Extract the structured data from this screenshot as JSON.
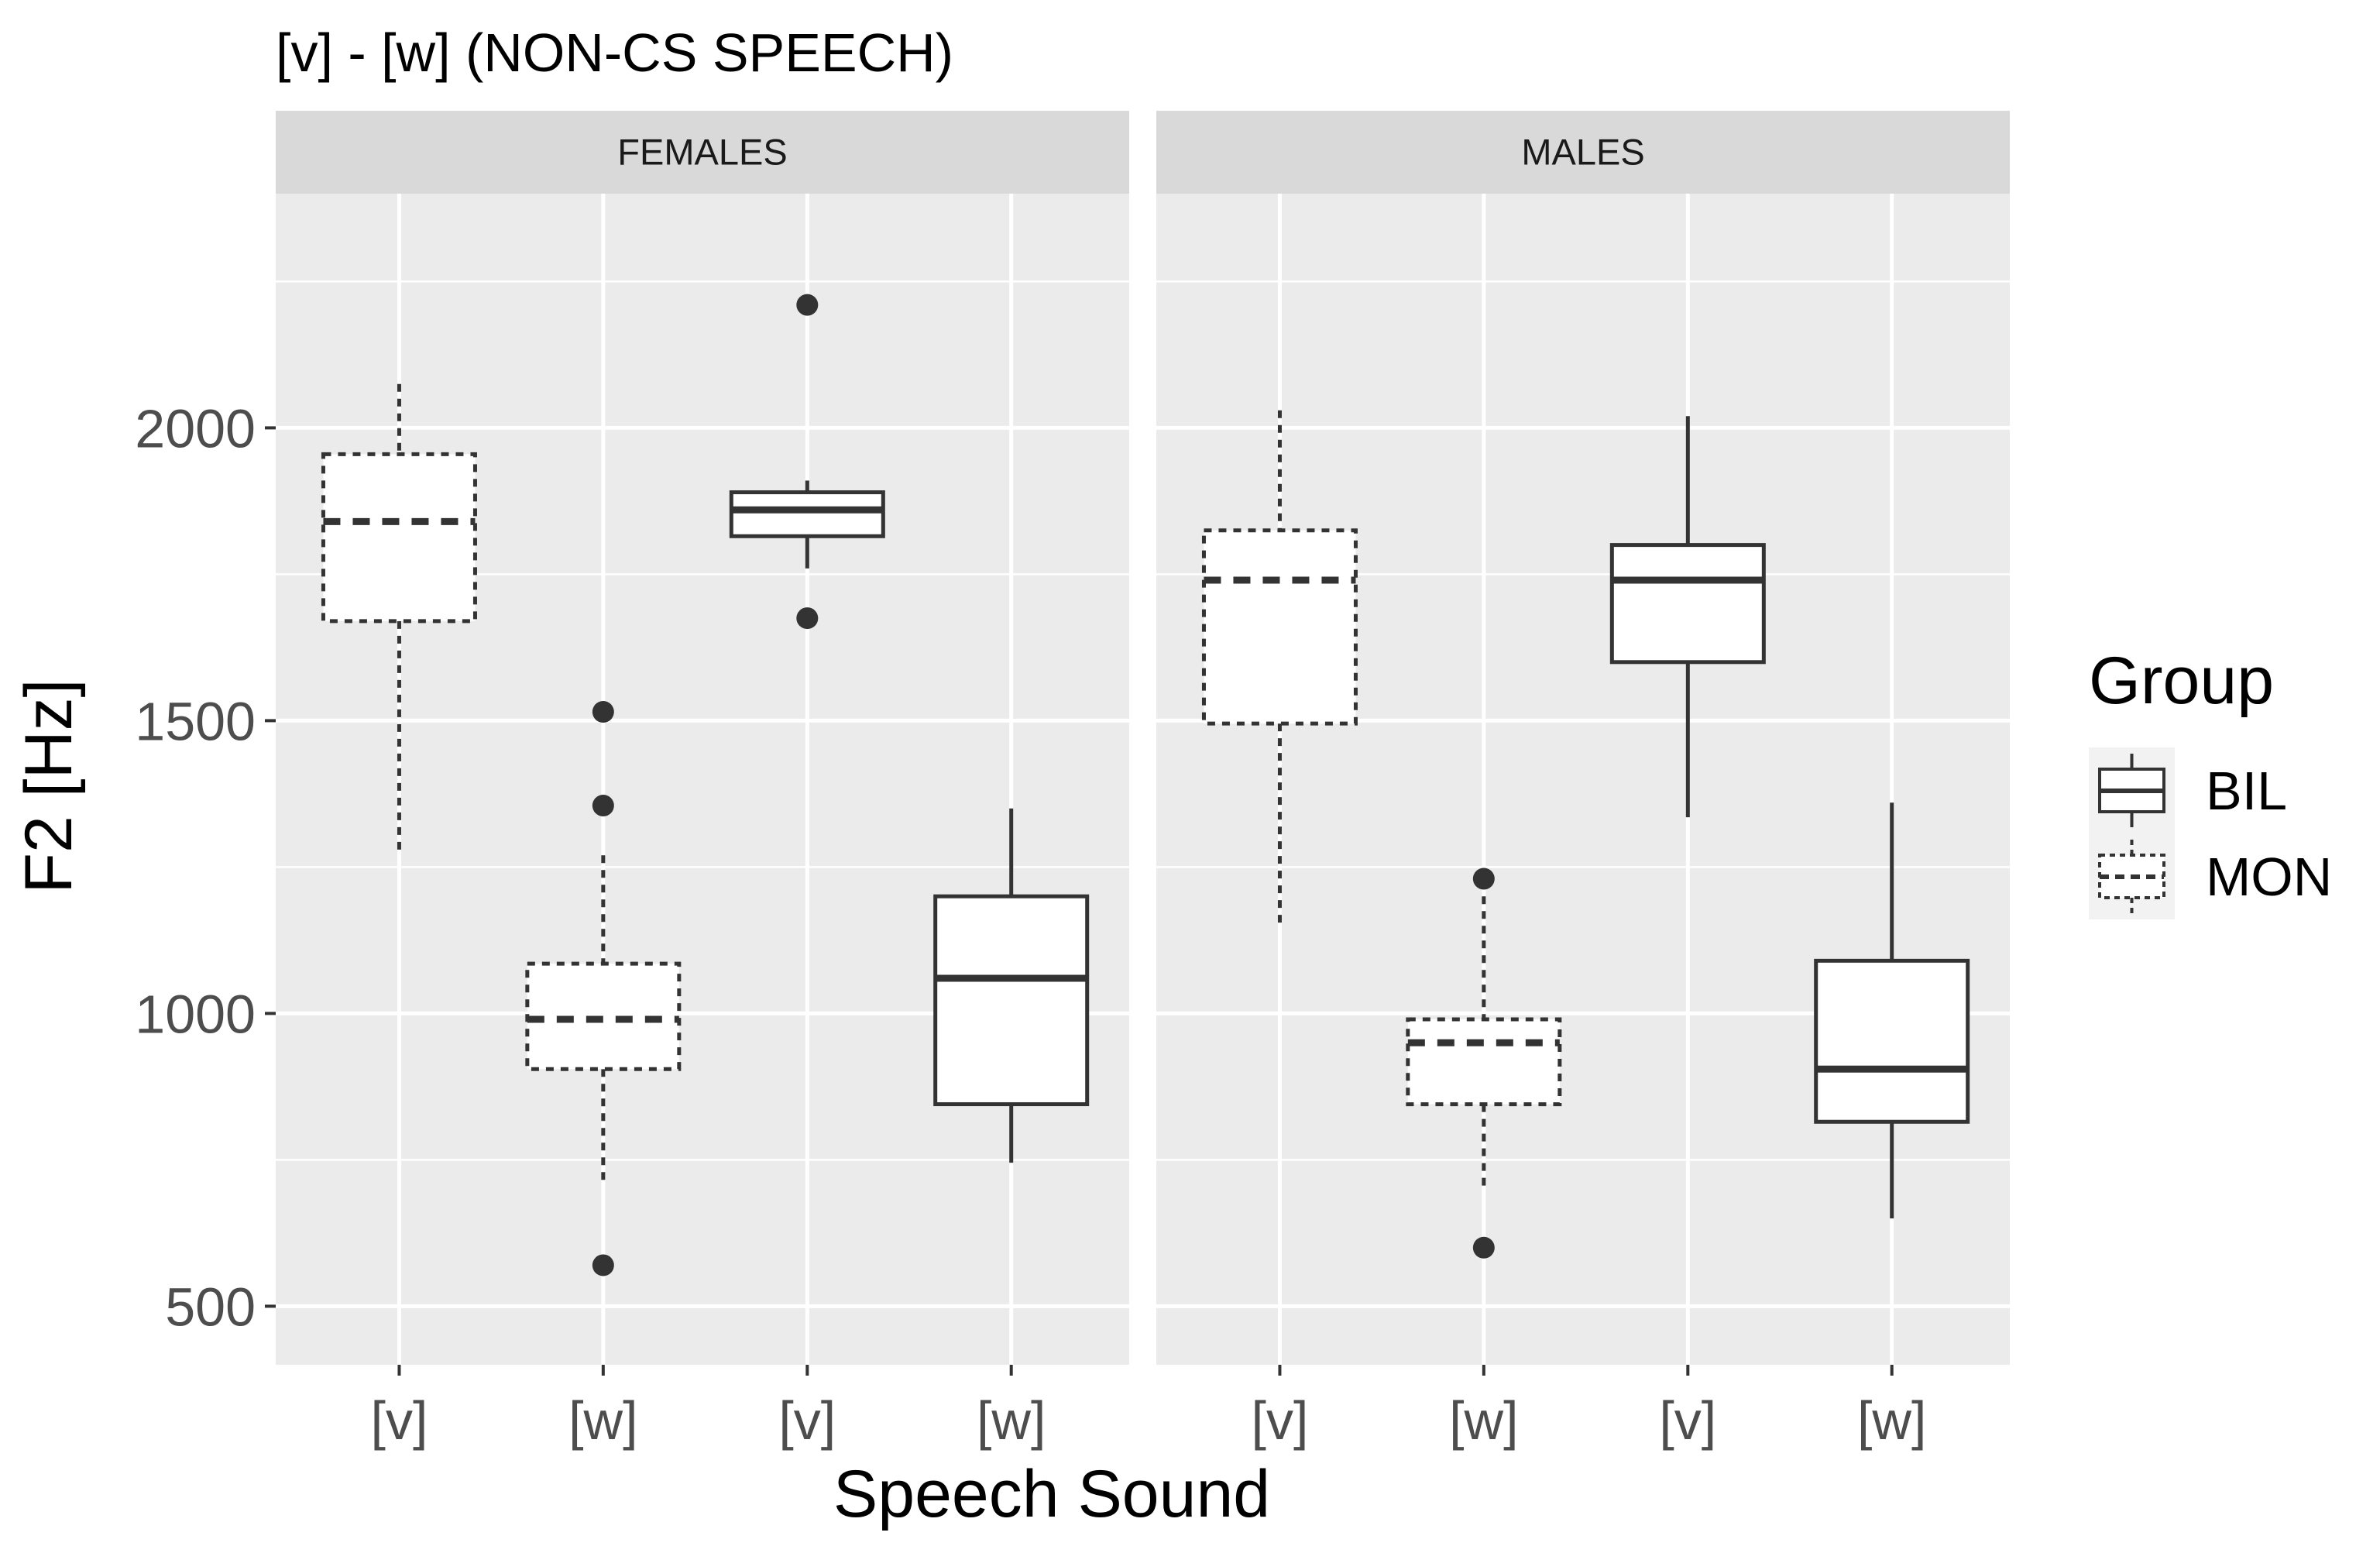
{
  "chart_data": {
    "type": "boxplot",
    "title": "[v] - [w] (NON-CS SPEECH)",
    "xlabel": "Speech Sound",
    "ylabel": "F2 [Hz]",
    "ylim": [
      400,
      2400
    ],
    "yticks": [
      500,
      1000,
      1500,
      2000
    ],
    "categories": [
      "[v]",
      "[w]",
      "[v]",
      "[w]"
    ],
    "legend": {
      "title": "Group",
      "position": "right",
      "entries": [
        {
          "name": "BIL",
          "linetype": "solid"
        },
        {
          "name": "MON",
          "linetype": "dashed"
        }
      ]
    },
    "panels": [
      {
        "label": "FEMALES",
        "boxes": [
          {
            "category": "[v]",
            "group": "MON",
            "whisker_low": 1270,
            "q1": 1670,
            "median": 1840,
            "q3": 1955,
            "whisker_high": 2075,
            "outliers": []
          },
          {
            "category": "[w]",
            "group": "MON",
            "whisker_low": 710,
            "q1": 905,
            "median": 990,
            "q3": 1085,
            "whisker_high": 1270,
            "outliers": [
              570,
              1355,
              1515
            ]
          },
          {
            "category": "[v]",
            "group": "BIL",
            "whisker_low": 1760,
            "q1": 1815,
            "median": 1860,
            "q3": 1890,
            "whisker_high": 1910,
            "outliers": [
              1675,
              2210
            ]
          },
          {
            "category": "[w]",
            "group": "BIL",
            "whisker_low": 745,
            "q1": 845,
            "median": 1060,
            "q3": 1200,
            "whisker_high": 1350,
            "outliers": []
          }
        ]
      },
      {
        "label": "MALES",
        "boxes": [
          {
            "category": "[v]",
            "group": "MON",
            "whisker_low": 1145,
            "q1": 1495,
            "median": 1740,
            "q3": 1825,
            "whisker_high": 2030,
            "outliers": []
          },
          {
            "category": "[w]",
            "group": "MON",
            "whisker_low": 700,
            "q1": 845,
            "median": 950,
            "q3": 990,
            "whisker_high": 1200,
            "outliers": [
              600,
              1230
            ]
          },
          {
            "category": "[v]",
            "group": "BIL",
            "whisker_low": 1335,
            "q1": 1600,
            "median": 1740,
            "q3": 1800,
            "whisker_high": 2020,
            "outliers": []
          },
          {
            "category": "[w]",
            "group": "BIL",
            "whisker_low": 650,
            "q1": 815,
            "median": 905,
            "q3": 1090,
            "whisker_high": 1360,
            "outliers": []
          }
        ]
      }
    ]
  }
}
